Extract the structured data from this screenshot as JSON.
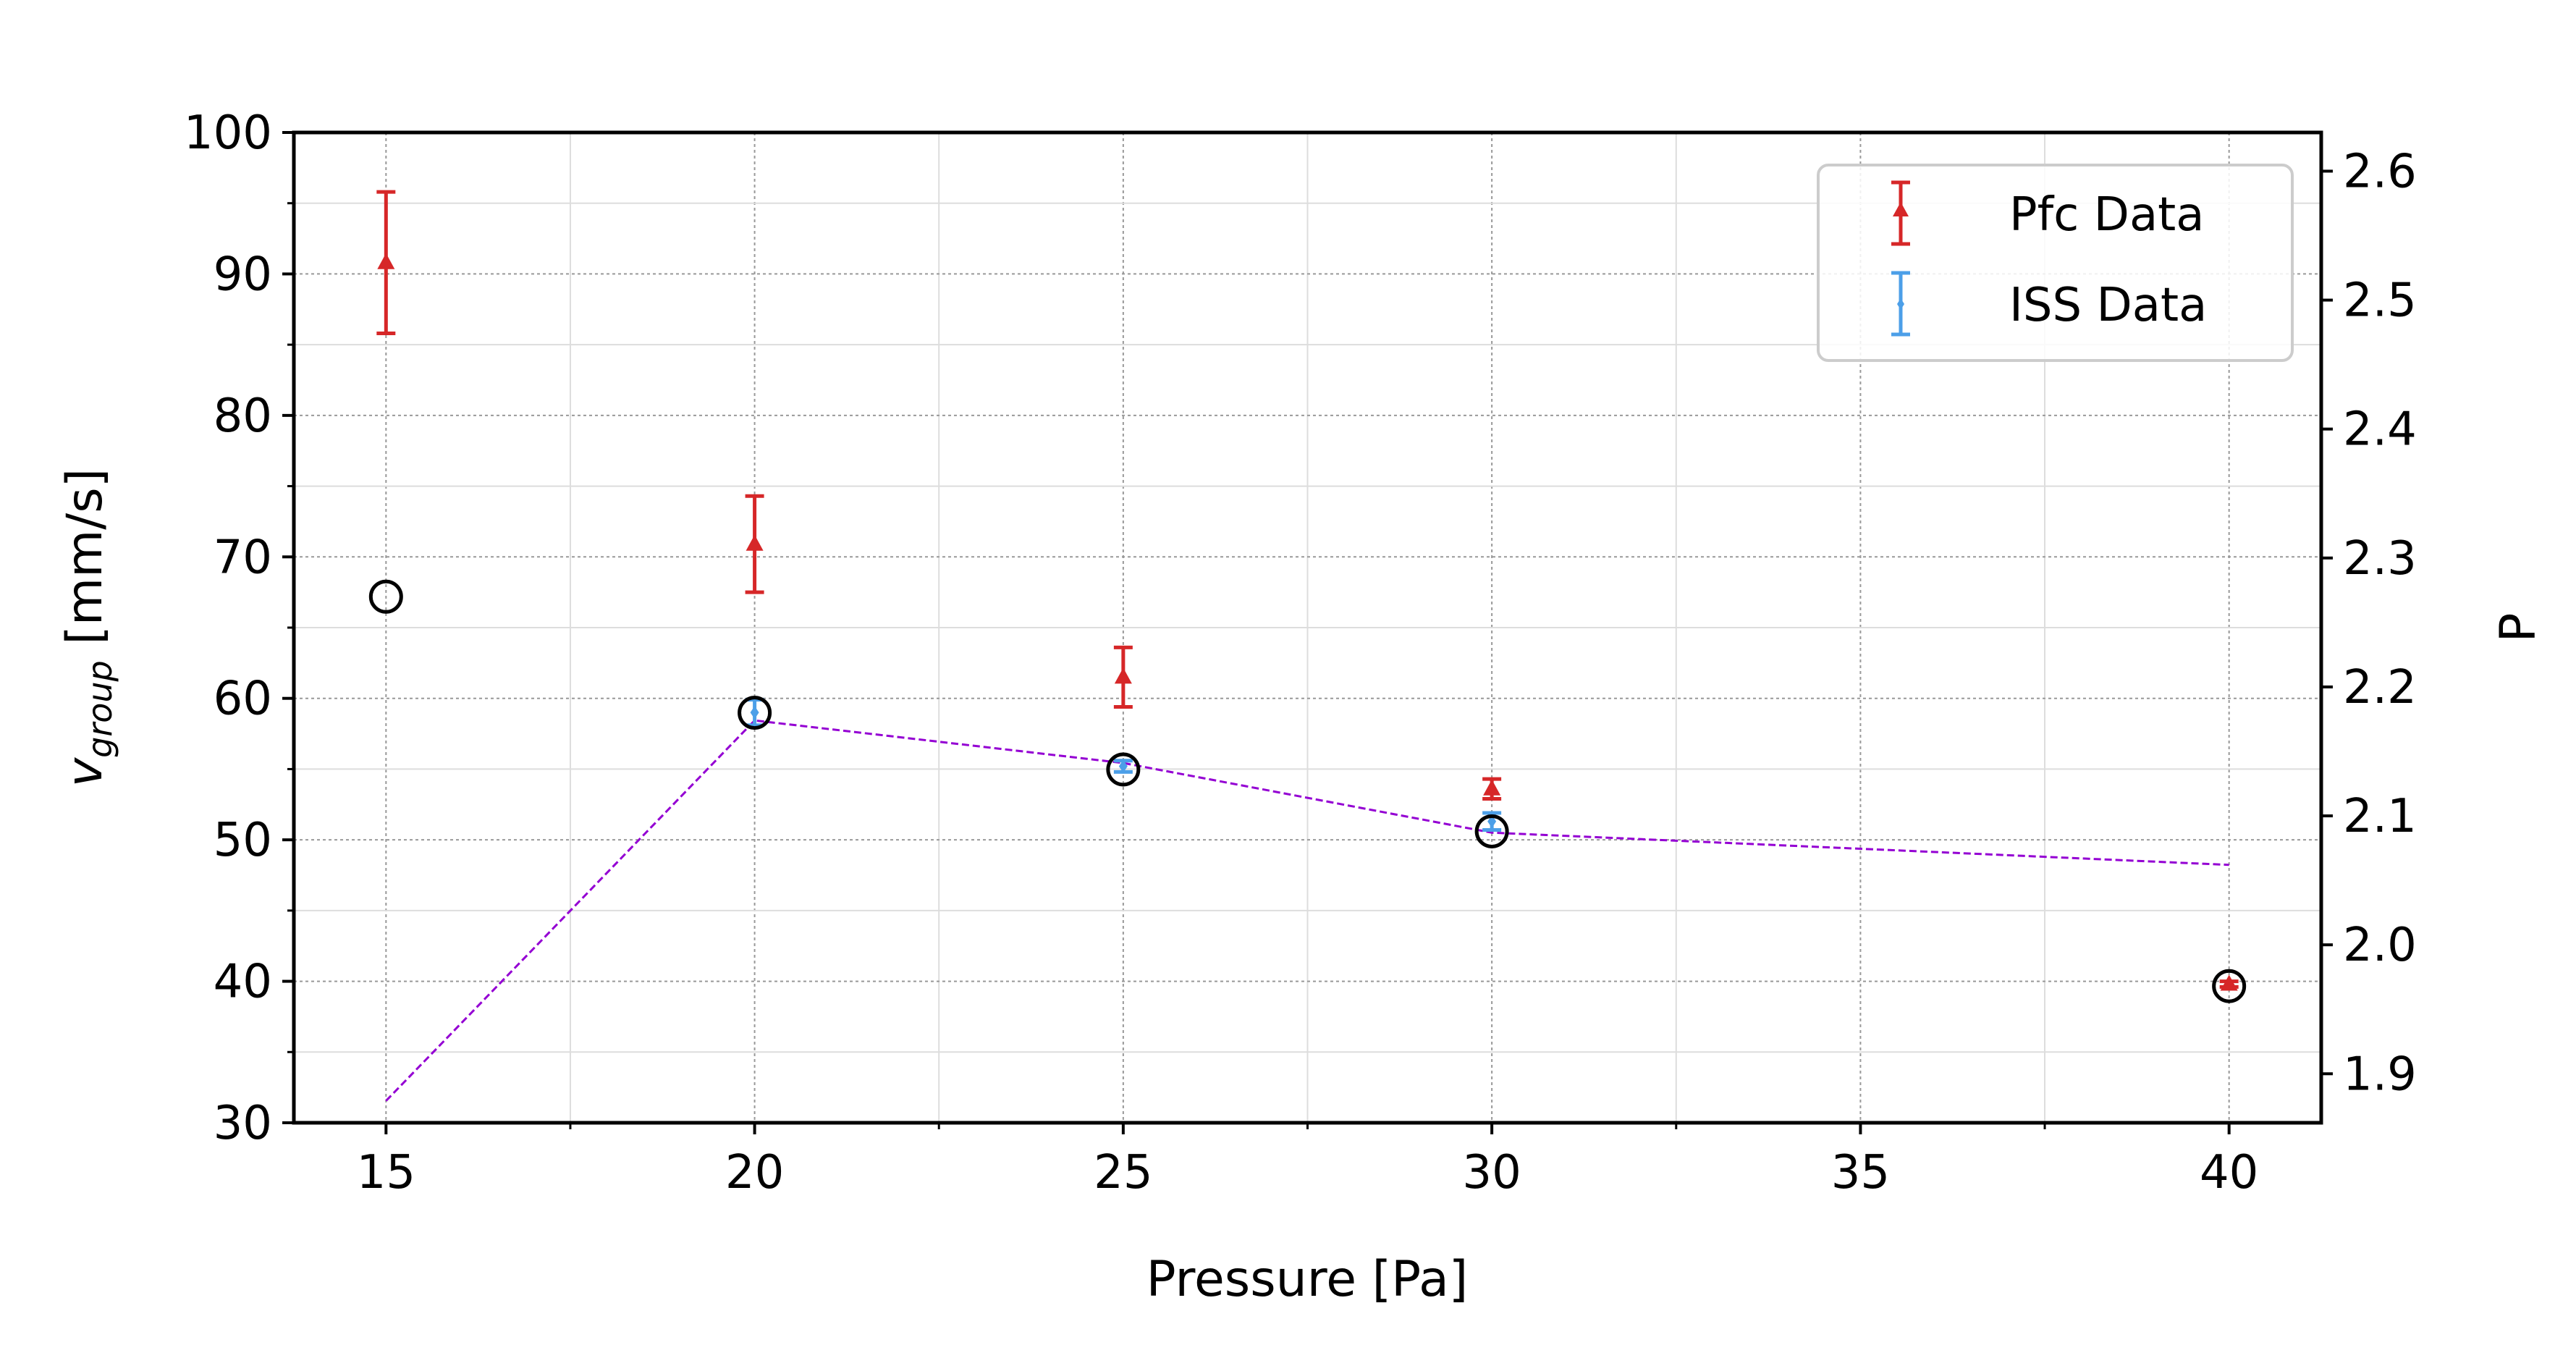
{
  "chart_data": {
    "type": "scatter",
    "xlabel": "Pressure [Pa]",
    "ylabel_main": "v",
    "ylabel_sub": "group",
    "ylabel_unit": " [mm/s]",
    "y2label": "P",
    "xlim": [
      13.75,
      41.25
    ],
    "ylim": [
      30,
      100
    ],
    "y2lim": [
      1.862,
      2.63
    ],
    "xticks": [
      15,
      20,
      25,
      30,
      35,
      40
    ],
    "xticks_minor": [
      17.5,
      22.5,
      27.5,
      32.5,
      37.5
    ],
    "yticks": [
      30,
      40,
      50,
      60,
      70,
      80,
      90,
      100
    ],
    "yticks_minor": [
      35,
      45,
      55,
      65,
      75,
      85,
      95
    ],
    "y2ticks": [
      1.9,
      2.0,
      2.1,
      2.2,
      2.3,
      2.4,
      2.5,
      2.6
    ],
    "y2tick_labels": [
      "1.9",
      "2.0",
      "2.1",
      "2.2",
      "2.3",
      "2.4",
      "2.5",
      "2.6"
    ],
    "grid": true,
    "legend_position": "top-right",
    "series": [
      {
        "name": "Pfc Data",
        "color": "#d62728",
        "marker": "triangle",
        "axis": "left",
        "x": [
          15,
          20,
          25,
          30,
          40
        ],
        "y": [
          90.8,
          70.9,
          61.5,
          53.6,
          39.8
        ],
        "yerr": [
          5.0,
          3.4,
          2.1,
          0.7,
          0.2
        ]
      },
      {
        "name": "ISS Data",
        "color": "#4c9fe8",
        "marker": "diamond",
        "axis": "left",
        "x": [
          20,
          25,
          30
        ],
        "y": [
          59.0,
          55.2,
          51.3
        ],
        "yerr": [
          0.9,
          0.4,
          0.6
        ]
      },
      {
        "color": "#000000",
        "marker": "open-circle",
        "axis": "right",
        "x": [
          15,
          20,
          25,
          30,
          40
        ],
        "y": [
          2.27,
          2.18,
          2.136,
          2.088,
          1.968
        ]
      },
      {
        "color": "#9400d3",
        "marker": "dashed-line",
        "axis": "right",
        "x": [
          15,
          20,
          25,
          30,
          40
        ],
        "y": [
          1.879,
          2.174,
          2.141,
          2.087,
          2.062
        ]
      }
    ]
  }
}
